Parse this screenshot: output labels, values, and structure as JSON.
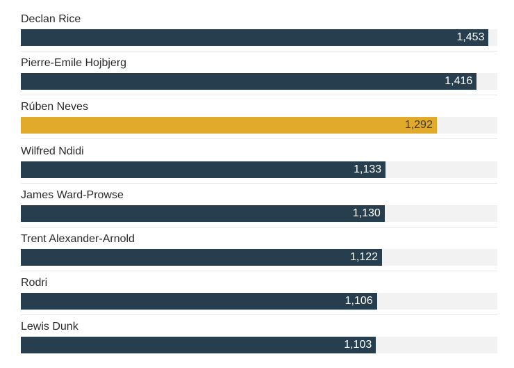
{
  "chart_data": {
    "type": "bar",
    "orientation": "horizontal",
    "categories": [
      "Declan Rice",
      "Pierre-Emile Hojbjerg",
      "Rúben Neves",
      "Wilfred Ndidi",
      "James Ward-Prowse",
      "Trent Alexander-Arnold",
      "Rodri",
      "Lewis Dunk"
    ],
    "values": [
      1453,
      1416,
      1292,
      1133,
      1130,
      1122,
      1106,
      1103
    ],
    "value_labels": [
      "1,453",
      "1,416",
      "1,292",
      "1,133",
      "1,130",
      "1,122",
      "1,106",
      "1,103"
    ],
    "highlight_index": 2,
    "xlim": [
      0,
      1480
    ],
    "colors": {
      "bar": "#263e4e",
      "highlight": "#e2aa2a",
      "track": "#f2f2f2"
    },
    "title": "",
    "xlabel": "",
    "ylabel": ""
  }
}
